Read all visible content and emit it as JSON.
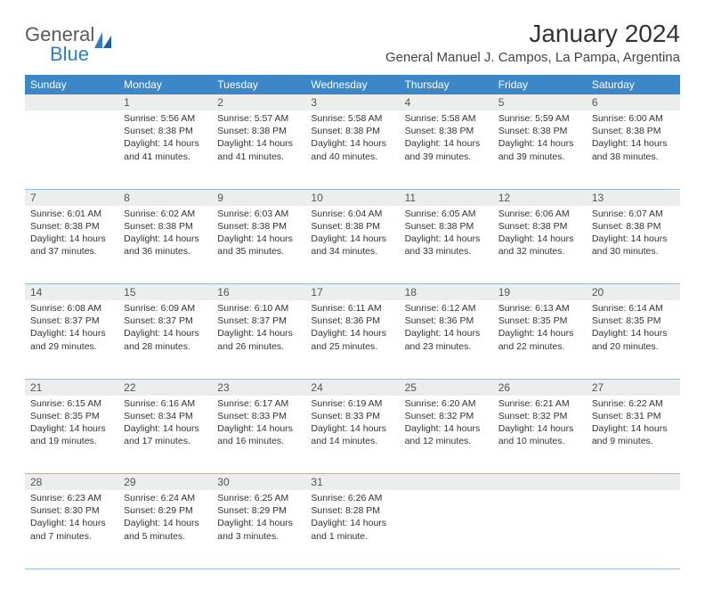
{
  "brand": {
    "general": "General",
    "blue": "Blue"
  },
  "title": "January 2024",
  "location": "General Manuel J. Campos, La Pampa, Argentina",
  "colors": {
    "header_bg": "#3b87c8",
    "header_fg": "#ffffff",
    "daynum_bg": "#eceded",
    "rule": "#9fb9d4",
    "text": "#333333",
    "brand_blue": "#2f7fbf",
    "brand_gray": "#5a5a5a"
  },
  "weekdays": [
    "Sunday",
    "Monday",
    "Tuesday",
    "Wednesday",
    "Thursday",
    "Friday",
    "Saturday"
  ],
  "weeks": [
    {
      "nums": [
        "",
        "1",
        "2",
        "3",
        "4",
        "5",
        "6"
      ],
      "cells": [
        null,
        {
          "sunrise": "5:56 AM",
          "sunset": "8:38 PM",
          "dl": "14 hours and 41 minutes."
        },
        {
          "sunrise": "5:57 AM",
          "sunset": "8:38 PM",
          "dl": "14 hours and 41 minutes."
        },
        {
          "sunrise": "5:58 AM",
          "sunset": "8:38 PM",
          "dl": "14 hours and 40 minutes."
        },
        {
          "sunrise": "5:58 AM",
          "sunset": "8:38 PM",
          "dl": "14 hours and 39 minutes."
        },
        {
          "sunrise": "5:59 AM",
          "sunset": "8:38 PM",
          "dl": "14 hours and 39 minutes."
        },
        {
          "sunrise": "6:00 AM",
          "sunset": "8:38 PM",
          "dl": "14 hours and 38 minutes."
        }
      ]
    },
    {
      "nums": [
        "7",
        "8",
        "9",
        "10",
        "11",
        "12",
        "13"
      ],
      "cells": [
        {
          "sunrise": "6:01 AM",
          "sunset": "8:38 PM",
          "dl": "14 hours and 37 minutes."
        },
        {
          "sunrise": "6:02 AM",
          "sunset": "8:38 PM",
          "dl": "14 hours and 36 minutes."
        },
        {
          "sunrise": "6:03 AM",
          "sunset": "8:38 PM",
          "dl": "14 hours and 35 minutes."
        },
        {
          "sunrise": "6:04 AM",
          "sunset": "8:38 PM",
          "dl": "14 hours and 34 minutes."
        },
        {
          "sunrise": "6:05 AM",
          "sunset": "8:38 PM",
          "dl": "14 hours and 33 minutes."
        },
        {
          "sunrise": "6:06 AM",
          "sunset": "8:38 PM",
          "dl": "14 hours and 32 minutes."
        },
        {
          "sunrise": "6:07 AM",
          "sunset": "8:38 PM",
          "dl": "14 hours and 30 minutes."
        }
      ]
    },
    {
      "nums": [
        "14",
        "15",
        "16",
        "17",
        "18",
        "19",
        "20"
      ],
      "cells": [
        {
          "sunrise": "6:08 AM",
          "sunset": "8:37 PM",
          "dl": "14 hours and 29 minutes."
        },
        {
          "sunrise": "6:09 AM",
          "sunset": "8:37 PM",
          "dl": "14 hours and 28 minutes."
        },
        {
          "sunrise": "6:10 AM",
          "sunset": "8:37 PM",
          "dl": "14 hours and 26 minutes."
        },
        {
          "sunrise": "6:11 AM",
          "sunset": "8:36 PM",
          "dl": "14 hours and 25 minutes."
        },
        {
          "sunrise": "6:12 AM",
          "sunset": "8:36 PM",
          "dl": "14 hours and 23 minutes."
        },
        {
          "sunrise": "6:13 AM",
          "sunset": "8:35 PM",
          "dl": "14 hours and 22 minutes."
        },
        {
          "sunrise": "6:14 AM",
          "sunset": "8:35 PM",
          "dl": "14 hours and 20 minutes."
        }
      ]
    },
    {
      "nums": [
        "21",
        "22",
        "23",
        "24",
        "25",
        "26",
        "27"
      ],
      "cells": [
        {
          "sunrise": "6:15 AM",
          "sunset": "8:35 PM",
          "dl": "14 hours and 19 minutes."
        },
        {
          "sunrise": "6:16 AM",
          "sunset": "8:34 PM",
          "dl": "14 hours and 17 minutes."
        },
        {
          "sunrise": "6:17 AM",
          "sunset": "8:33 PM",
          "dl": "14 hours and 16 minutes."
        },
        {
          "sunrise": "6:19 AM",
          "sunset": "8:33 PM",
          "dl": "14 hours and 14 minutes."
        },
        {
          "sunrise": "6:20 AM",
          "sunset": "8:32 PM",
          "dl": "14 hours and 12 minutes."
        },
        {
          "sunrise": "6:21 AM",
          "sunset": "8:32 PM",
          "dl": "14 hours and 10 minutes."
        },
        {
          "sunrise": "6:22 AM",
          "sunset": "8:31 PM",
          "dl": "14 hours and 9 minutes."
        }
      ]
    },
    {
      "nums": [
        "28",
        "29",
        "30",
        "31",
        "",
        "",
        ""
      ],
      "cells": [
        {
          "sunrise": "6:23 AM",
          "sunset": "8:30 PM",
          "dl": "14 hours and 7 minutes."
        },
        {
          "sunrise": "6:24 AM",
          "sunset": "8:29 PM",
          "dl": "14 hours and 5 minutes."
        },
        {
          "sunrise": "6:25 AM",
          "sunset": "8:29 PM",
          "dl": "14 hours and 3 minutes."
        },
        {
          "sunrise": "6:26 AM",
          "sunset": "8:28 PM",
          "dl": "14 hours and 1 minute."
        },
        null,
        null,
        null
      ]
    }
  ],
  "labels": {
    "sunrise": "Sunrise:",
    "sunset": "Sunset:",
    "daylight": "Daylight:"
  }
}
